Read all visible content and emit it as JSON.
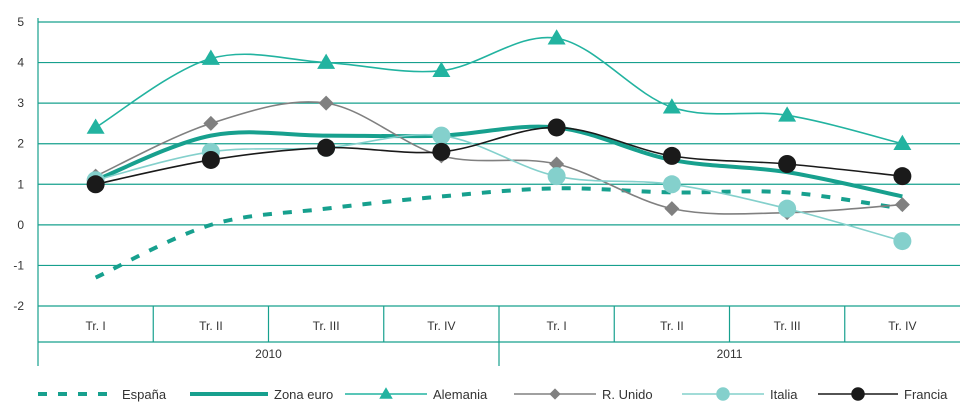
{
  "chart_data": {
    "type": "line",
    "ylim": [
      -2,
      5
    ],
    "yticks": [
      -2,
      -1,
      0,
      1,
      2,
      3,
      4,
      5
    ],
    "grid": true,
    "legend_position": "bottom",
    "categories": [
      "Tr. I",
      "Tr. II",
      "Tr. III",
      "Tr. IV",
      "Tr. I",
      "Tr. II",
      "Tr. III",
      "Tr. IV"
    ],
    "groups": [
      {
        "label": "2010",
        "span": 4
      },
      {
        "label": "2011",
        "span": 4
      }
    ],
    "series": [
      {
        "name": "España",
        "color": "#17a08e",
        "style": "dotted",
        "marker": "none",
        "values": [
          -1.3,
          0.0,
          0.4,
          0.7,
          0.9,
          0.8,
          0.8,
          0.4
        ]
      },
      {
        "name": "Zona euro",
        "color": "#17a08e",
        "style": "thick",
        "marker": "none",
        "values": [
          1.1,
          2.2,
          2.2,
          2.2,
          2.4,
          1.6,
          1.3,
          0.7
        ]
      },
      {
        "name": "Alemania",
        "color": "#22b3a0",
        "style": "thin",
        "marker": "triangle",
        "values": [
          2.4,
          4.1,
          4.0,
          3.8,
          4.6,
          2.9,
          2.7,
          2.0
        ]
      },
      {
        "name": "R. Unido",
        "color": "#808080",
        "style": "thin",
        "marker": "diamond",
        "values": [
          1.2,
          2.5,
          3.0,
          1.7,
          1.5,
          0.4,
          0.3,
          0.5
        ]
      },
      {
        "name": "Italia",
        "color": "#84d0cc",
        "style": "thin",
        "marker": "circle",
        "values": [
          1.1,
          1.8,
          1.9,
          2.2,
          1.2,
          1.0,
          0.4,
          -0.4
        ]
      },
      {
        "name": "Francia",
        "color": "#1a1a1a",
        "style": "thin",
        "marker": "circle",
        "values": [
          1.0,
          1.6,
          1.9,
          1.8,
          2.4,
          1.7,
          1.5,
          1.2
        ]
      }
    ]
  }
}
